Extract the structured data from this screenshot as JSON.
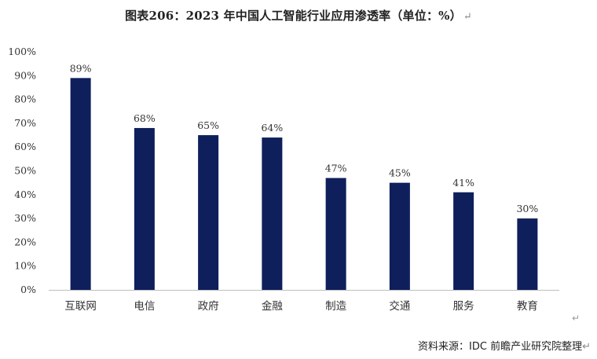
{
  "title": "图表206：2023 年中国人工智能行业应用渗透率（单位：%）",
  "return_mark": "↵",
  "source": "资料来源：IDC 前瞻产业研究院整理",
  "colors": {
    "bar": "#0F1F5C",
    "axis": "#BFBFBF"
  },
  "chart_data": {
    "type": "bar",
    "title": "图表206：2023 年中国人工智能行业应用渗透率（单位：%）",
    "xlabel": "",
    "ylabel": "",
    "categories": [
      "互联网",
      "电信",
      "政府",
      "金融",
      "制造",
      "交通",
      "服务",
      "教育"
    ],
    "values": [
      89,
      68,
      65,
      64,
      47,
      45,
      41,
      30
    ],
    "data_labels": [
      "89%",
      "68%",
      "65%",
      "64%",
      "47%",
      "45%",
      "41%",
      "30%"
    ],
    "ylim": [
      0,
      100
    ],
    "yticks": [
      "0%",
      "10%",
      "20%",
      "30%",
      "40%",
      "50%",
      "60%",
      "70%",
      "80%",
      "90%",
      "100%"
    ],
    "grid": false,
    "legend": "none"
  }
}
